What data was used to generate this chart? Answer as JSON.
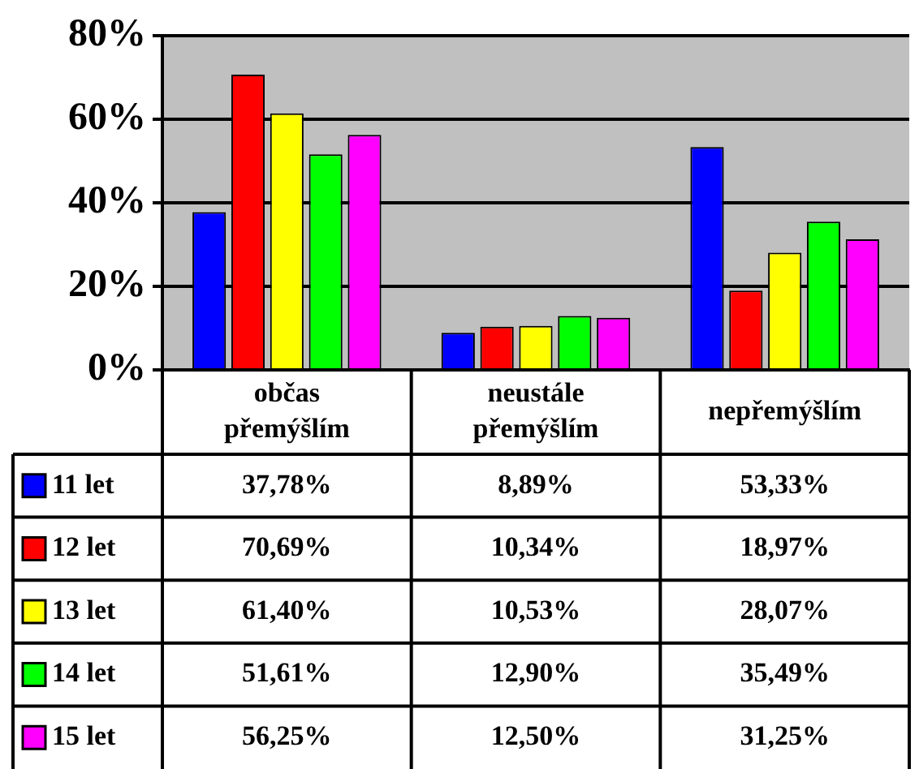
{
  "chart_data": {
    "type": "bar",
    "categories": [
      "občas přemýšlím",
      "neustále přemýšlím",
      "nepřemýšlím"
    ],
    "series": [
      {
        "name": "11 let",
        "color": "#0000ff",
        "values": [
          37.78,
          8.89,
          53.33
        ],
        "value_labels": [
          "37,78%",
          "8,89%",
          "53,33%"
        ]
      },
      {
        "name": "12 let",
        "color": "#ff0000",
        "values": [
          70.69,
          10.34,
          18.97
        ],
        "value_labels": [
          "70,69%",
          "10,34%",
          "18,97%"
        ]
      },
      {
        "name": "13 let",
        "color": "#ffff00",
        "values": [
          61.4,
          10.53,
          28.07
        ],
        "value_labels": [
          "61,40%",
          "10,53%",
          "28,07%"
        ]
      },
      {
        "name": "14 let",
        "color": "#00ff00",
        "values": [
          51.61,
          12.9,
          35.49
        ],
        "value_labels": [
          "51,61%",
          "12,90%",
          "35,49%"
        ]
      },
      {
        "name": "15 let",
        "color": "#ff00ff",
        "values": [
          56.25,
          12.5,
          31.25
        ],
        "value_labels": [
          "56,25%",
          "12,50%",
          "31,25%"
        ]
      }
    ],
    "ylim": [
      0,
      80
    ],
    "yticks": [
      {
        "value": 0,
        "label": "0%"
      },
      {
        "value": 20,
        "label": "20%"
      },
      {
        "value": 40,
        "label": "40%"
      },
      {
        "value": 60,
        "label": "60%"
      },
      {
        "value": 80,
        "label": "80%"
      }
    ],
    "grid": "y",
    "legend": "bottom"
  }
}
